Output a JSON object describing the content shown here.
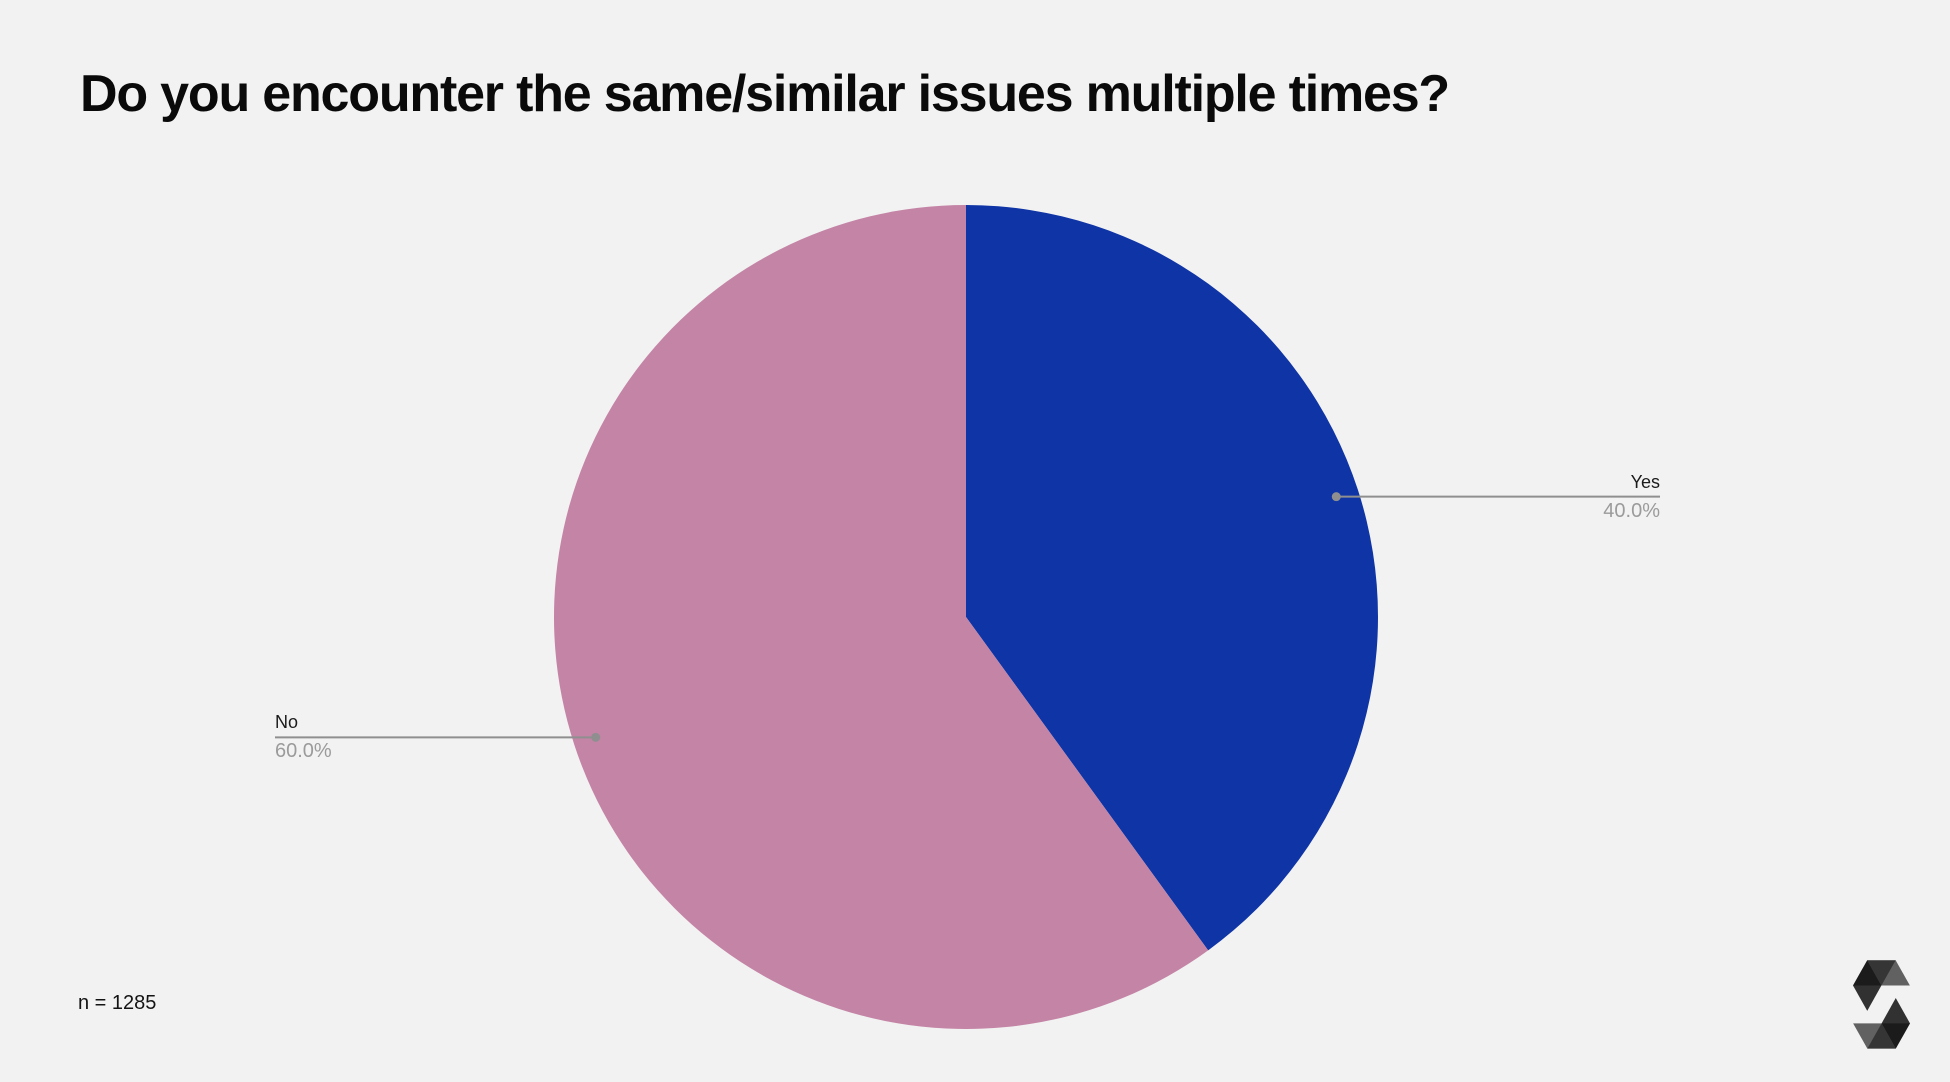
{
  "title": "Do you encounter the same/similar issues multiple times?",
  "sample_size_label": "n = 1285",
  "chart_data": {
    "type": "pie",
    "title": "Do you encounter the same/similar issues multiple times?",
    "categories": [
      "Yes",
      "No"
    ],
    "values": [
      40.0,
      60.0
    ],
    "value_labels": [
      "40.0%",
      "60.0%"
    ],
    "colors": [
      "#0E34A6",
      "#C484A6"
    ],
    "start_angle_deg": 0,
    "direction": "clockwise",
    "legend_position": "none",
    "label_style": "outside-leader-lines",
    "sample_size": 1285
  },
  "branding": {
    "logo": "solidity-logo"
  },
  "theme": {
    "background": "#F2F2F2",
    "title_color": "#0A0A0A",
    "label_color": "#1B1B1B",
    "percent_color": "#9B9B9B",
    "leader_color": "#8F8F8F"
  }
}
